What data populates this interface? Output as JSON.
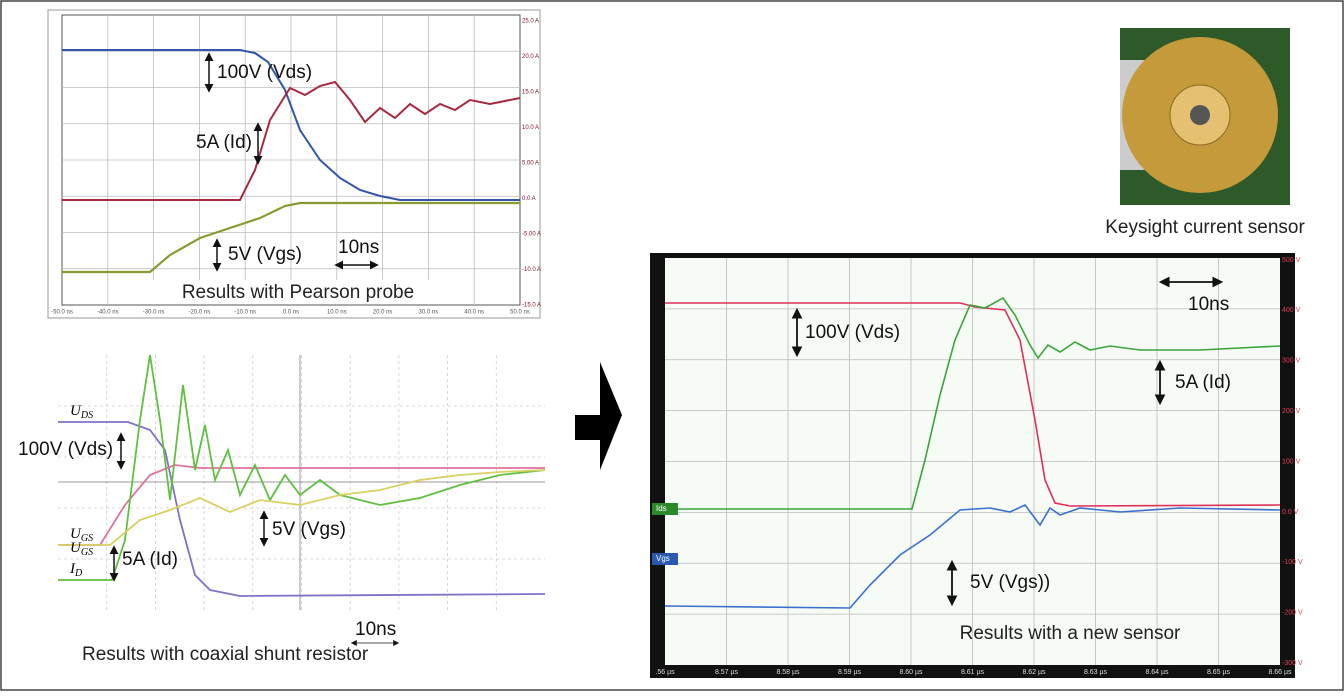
{
  "pearson": {
    "caption": "Results with Pearson probe",
    "annotations": [
      "100V (Vds)",
      "5A (Id)",
      "5V (Vgs)",
      "10ns"
    ],
    "right_axis": [
      "25.0 A",
      "20.0 A",
      "15.0 A",
      "10.0 A",
      "5.00 A",
      "0.0 A",
      "-5.00 A",
      "-10.0 A",
      "-15.0 A"
    ],
    "bottom_axis": [
      "-50.0 ns",
      "-40.0 ns",
      "-30.0 ns",
      "-20.0 ns",
      "-10.0 ns",
      "0.0 ns",
      "10.0 ns",
      "20.0 ns",
      "30.0 ns",
      "40.0 ns",
      "50.0 ns"
    ]
  },
  "coax": {
    "caption": "Results with coaxial shunt resistor",
    "annotations": [
      "100V (Vds)",
      "5V (Vgs)",
      "5A (Id)",
      "10ns"
    ],
    "signal_labels": [
      {
        "main": "U",
        "sub": "DS"
      },
      {
        "main": "U",
        "sub": "GS"
      },
      {
        "main": "U",
        "sub": "GS"
      },
      {
        "main": "I",
        "sub": "D"
      }
    ]
  },
  "sensor_photo": {
    "caption": "Keysight current sensor"
  },
  "new_sensor": {
    "caption": "Results with a new sensor",
    "annotations": [
      "100V (Vds)",
      "5A (Id)",
      "5V (Vgs))",
      "10ns"
    ],
    "channel_tags": [
      "Ids",
      "Vgs"
    ],
    "right_axis": [
      "500 V",
      "400 V",
      "300 V",
      "200 V",
      "100 V",
      "0.0 V",
      "-100 V",
      "-200 V",
      "-300 V"
    ],
    "bottom_axis": [
      ".56 µs",
      "8.57 µs",
      "8.58 µs",
      "8.59 µs",
      "8.60 µs",
      "8.61 µs",
      "8.62 µs",
      "8.63 µs",
      "8.64 µs",
      "8.65 µs",
      "8.66 µs"
    ]
  }
}
